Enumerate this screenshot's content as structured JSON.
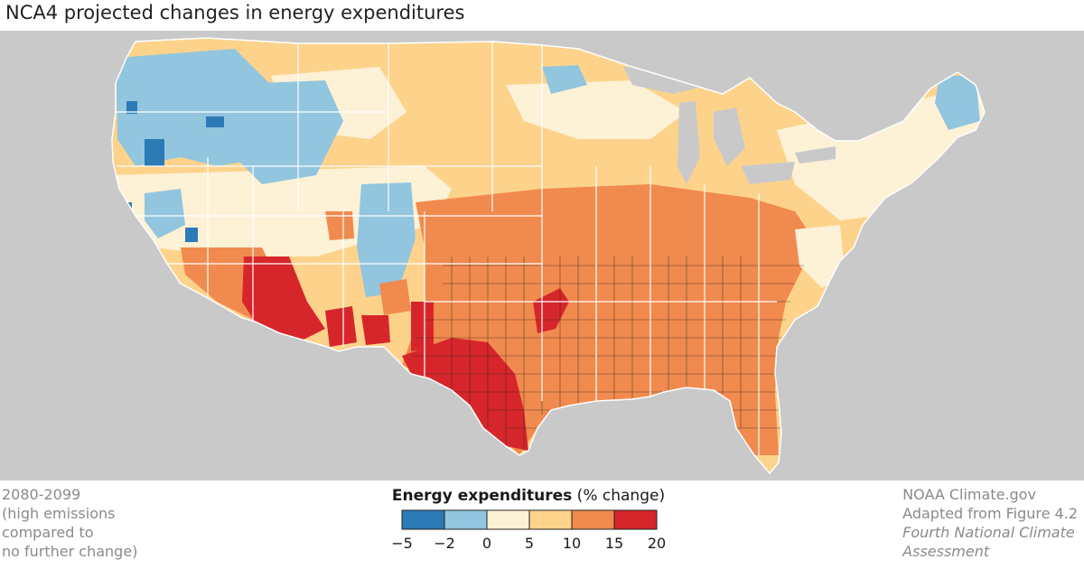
{
  "title": "NCA4 projected changes in energy expenditures",
  "period": {
    "lines": [
      "2080-2099",
      "(high emissions",
      "compared to",
      "no further change)"
    ]
  },
  "credit": {
    "lines": [
      "NOAA Climate.gov",
      "Adapted from Figure 4.2"
    ],
    "italic_lines": [
      "Fourth National Climate",
      "Assessment"
    ]
  },
  "legend": {
    "title_bold": "Energy expenditures",
    "title_rest": " (% change)",
    "bins": [
      {
        "from": -5,
        "to": -2,
        "color": "#2c7bb6"
      },
      {
        "from": -2,
        "to": 0,
        "color": "#92c5de"
      },
      {
        "from": 0,
        "to": 5,
        "color": "#fdf1d6"
      },
      {
        "from": 5,
        "to": 10,
        "color": "#fdd38c"
      },
      {
        "from": 10,
        "to": 15,
        "color": "#f18a4e"
      },
      {
        "from": 15,
        "to": 20,
        "color": "#d7262b"
      }
    ],
    "tick_labels": [
      "−5",
      "−2",
      "0",
      "5",
      "10",
      "15",
      "20"
    ]
  },
  "colors": {
    "ocean": "#c9c9c9",
    "land_outside": "#c9c9c9",
    "state_border": "#ffffff",
    "county_border": "#222222",
    "lakes": "#c9c9c9"
  }
}
